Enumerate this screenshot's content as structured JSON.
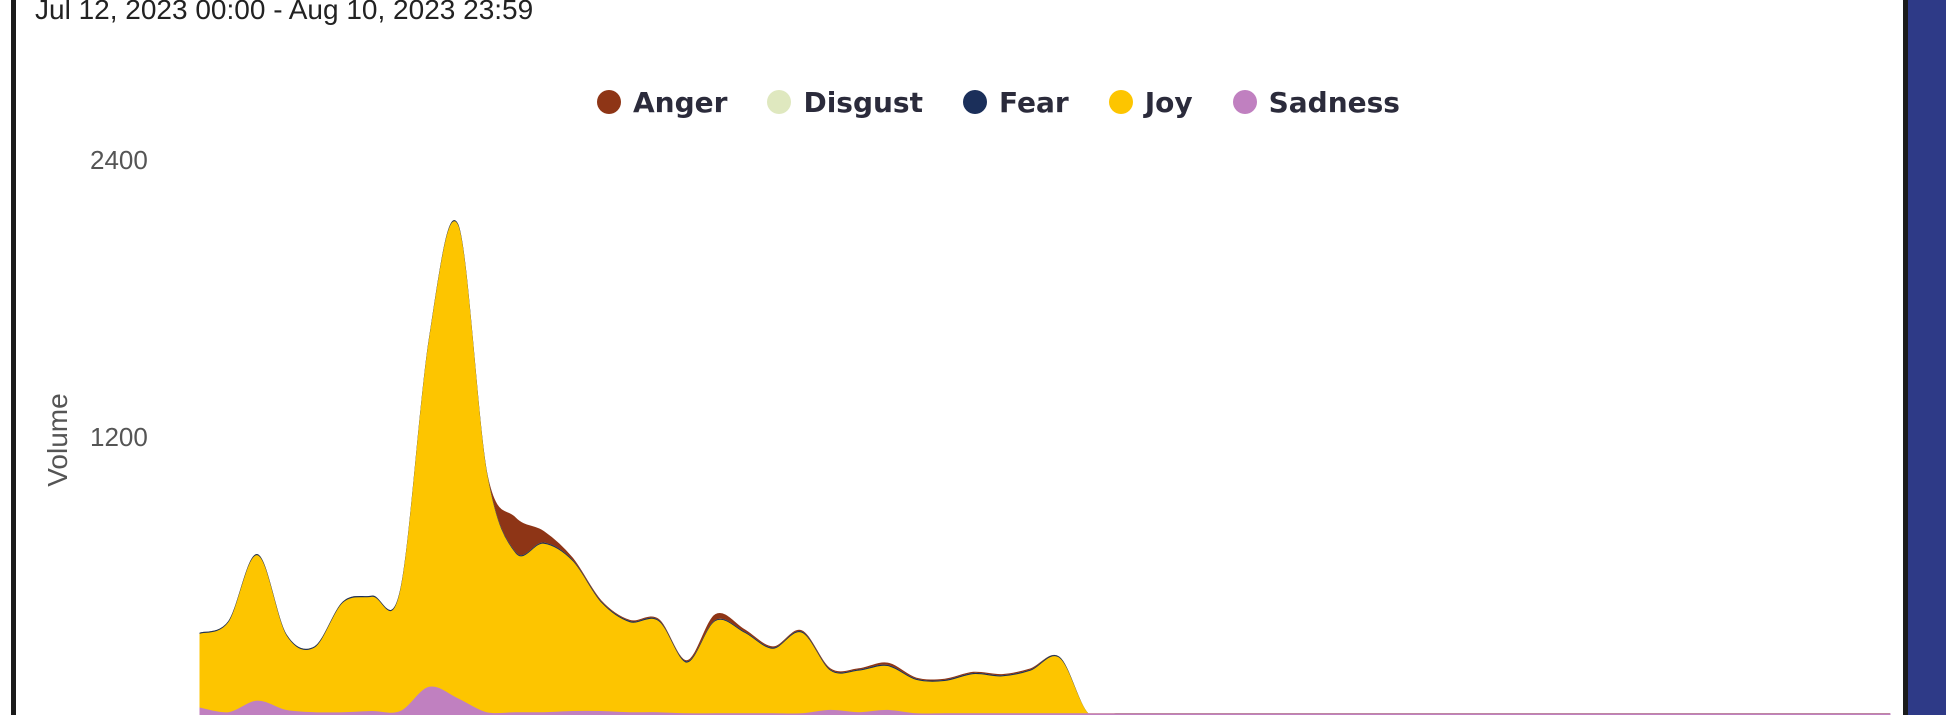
{
  "frame": {
    "accent_color": "#2e3a87"
  },
  "date_range": "Jul 12, 2023 00:00 - Aug 10, 2023 23:59",
  "chart_data": {
    "type": "area",
    "stacked": true,
    "title": "",
    "xlabel": "",
    "ylabel": "Volume",
    "ylim": [
      0,
      2400
    ],
    "yticks": [
      {
        "label": "2400",
        "value": 2400
      },
      {
        "label": "1200",
        "value": 1200
      }
    ],
    "legend_position": "top-center",
    "x": [
      0,
      1,
      2,
      3,
      4,
      5,
      6,
      7,
      8,
      9,
      10,
      11,
      12,
      13,
      14,
      15,
      16,
      17,
      18,
      19,
      20,
      21,
      22,
      23,
      24,
      25,
      26,
      27,
      28,
      29,
      30,
      31,
      32,
      33,
      34,
      35,
      36,
      37,
      38,
      39,
      40,
      41,
      42,
      43,
      44,
      45,
      46,
      47,
      48,
      49,
      50,
      51,
      52,
      53,
      54,
      55,
      56,
      57,
      58,
      59
    ],
    "series": [
      {
        "name": "Sadness",
        "color": "#c080c0",
        "values": [
          30,
          10,
          60,
          20,
          10,
          10,
          15,
          15,
          120,
          70,
          10,
          10,
          10,
          15,
          15,
          10,
          10,
          5,
          5,
          5,
          5,
          5,
          20,
          10,
          20,
          5,
          5,
          5,
          5,
          5,
          5,
          5,
          5,
          5,
          5,
          5,
          5,
          5,
          5,
          5,
          5,
          5,
          5,
          5,
          5,
          5,
          5,
          5,
          5,
          5,
          5,
          5,
          5,
          5,
          5,
          5,
          5,
          5,
          5,
          5
        ]
      },
      {
        "name": "Joy",
        "color": "#fdc500",
        "values": [
          320,
          390,
          630,
          325,
          280,
          475,
          495,
          520,
          1500,
          2050,
          1040,
          690,
          730,
          650,
          470,
          390,
          395,
          220,
          400,
          350,
          280,
          350,
          170,
          180,
          190,
          145,
          140,
          170,
          160,
          185,
          240,
          0,
          0,
          0,
          0,
          0,
          0,
          0,
          0,
          0,
          0,
          0,
          0,
          0,
          0,
          0,
          0,
          0,
          0,
          0,
          0,
          0,
          0,
          0,
          0,
          0,
          0,
          0,
          0,
          0
        ]
      },
      {
        "name": "Fear",
        "color": "#1b2f5a",
        "values": [
          5,
          5,
          5,
          5,
          5,
          5,
          5,
          5,
          5,
          5,
          5,
          5,
          5,
          5,
          5,
          5,
          5,
          5,
          5,
          5,
          5,
          5,
          5,
          5,
          5,
          5,
          5,
          5,
          5,
          5,
          5,
          0,
          0,
          0,
          0,
          0,
          0,
          0,
          0,
          0,
          0,
          0,
          0,
          0,
          0,
          0,
          0,
          0,
          0,
          0,
          0,
          0,
          0,
          0,
          0,
          0,
          0,
          0,
          0,
          0
        ]
      },
      {
        "name": "Disgust",
        "color": "#dfe8bf",
        "values": [
          0,
          0,
          0,
          0,
          0,
          0,
          0,
          0,
          0,
          0,
          0,
          0,
          0,
          0,
          0,
          0,
          0,
          0,
          0,
          0,
          0,
          0,
          0,
          0,
          0,
          0,
          0,
          0,
          0,
          0,
          0,
          0,
          0,
          0,
          0,
          0,
          0,
          0,
          0,
          0,
          0,
          0,
          0,
          0,
          0,
          0,
          0,
          0,
          0,
          0,
          0,
          0,
          0,
          0,
          0,
          0,
          0,
          0,
          0,
          0
        ]
      },
      {
        "name": "Anger",
        "color": "#8e3516",
        "values": [
          0,
          0,
          0,
          0,
          0,
          0,
          0,
          0,
          0,
          0,
          0,
          150,
          50,
          10,
          5,
          5,
          5,
          5,
          25,
          10,
          5,
          5,
          5,
          5,
          10,
          5,
          5,
          5,
          5,
          5,
          0,
          0,
          0,
          0,
          0,
          0,
          0,
          0,
          0,
          0,
          0,
          0,
          0,
          0,
          0,
          0,
          0,
          0,
          0,
          0,
          0,
          0,
          0,
          0,
          0,
          0,
          0,
          0,
          0,
          0
        ]
      }
    ]
  }
}
